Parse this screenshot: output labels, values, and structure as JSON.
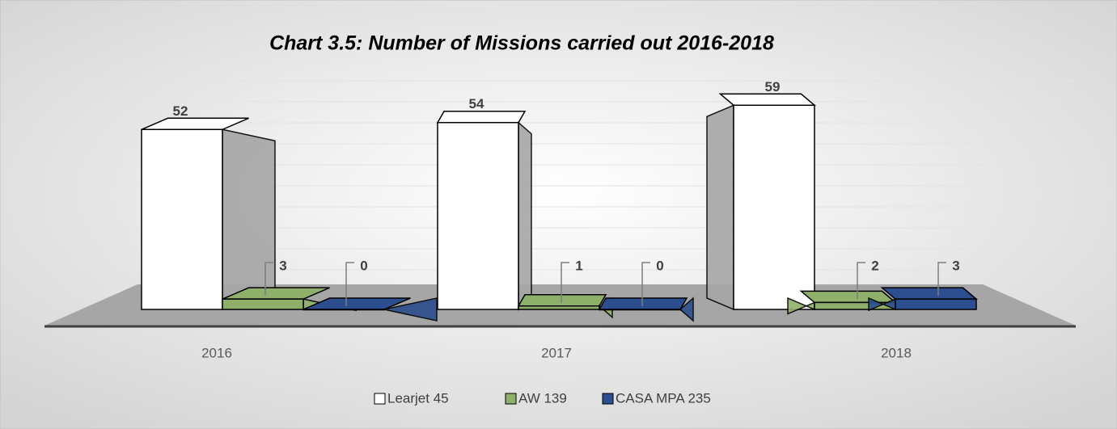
{
  "chart_data": {
    "type": "bar",
    "title": "Chart 3.5:  Number of Missions carried out 2016-2018",
    "categories": [
      "2016",
      "2017",
      "2018"
    ],
    "series": [
      {
        "name": "Learjet 45",
        "color": "#ffffff",
        "values": [
          52,
          54,
          59
        ]
      },
      {
        "name": "AW 139",
        "color": "#8fb06b",
        "values": [
          3,
          1,
          2
        ]
      },
      {
        "name": "CASA MPA 235",
        "color": "#2c4e8e",
        "values": [
          0,
          0,
          3
        ]
      }
    ],
    "ylim": [
      0,
      60
    ],
    "legend": "bottom"
  }
}
